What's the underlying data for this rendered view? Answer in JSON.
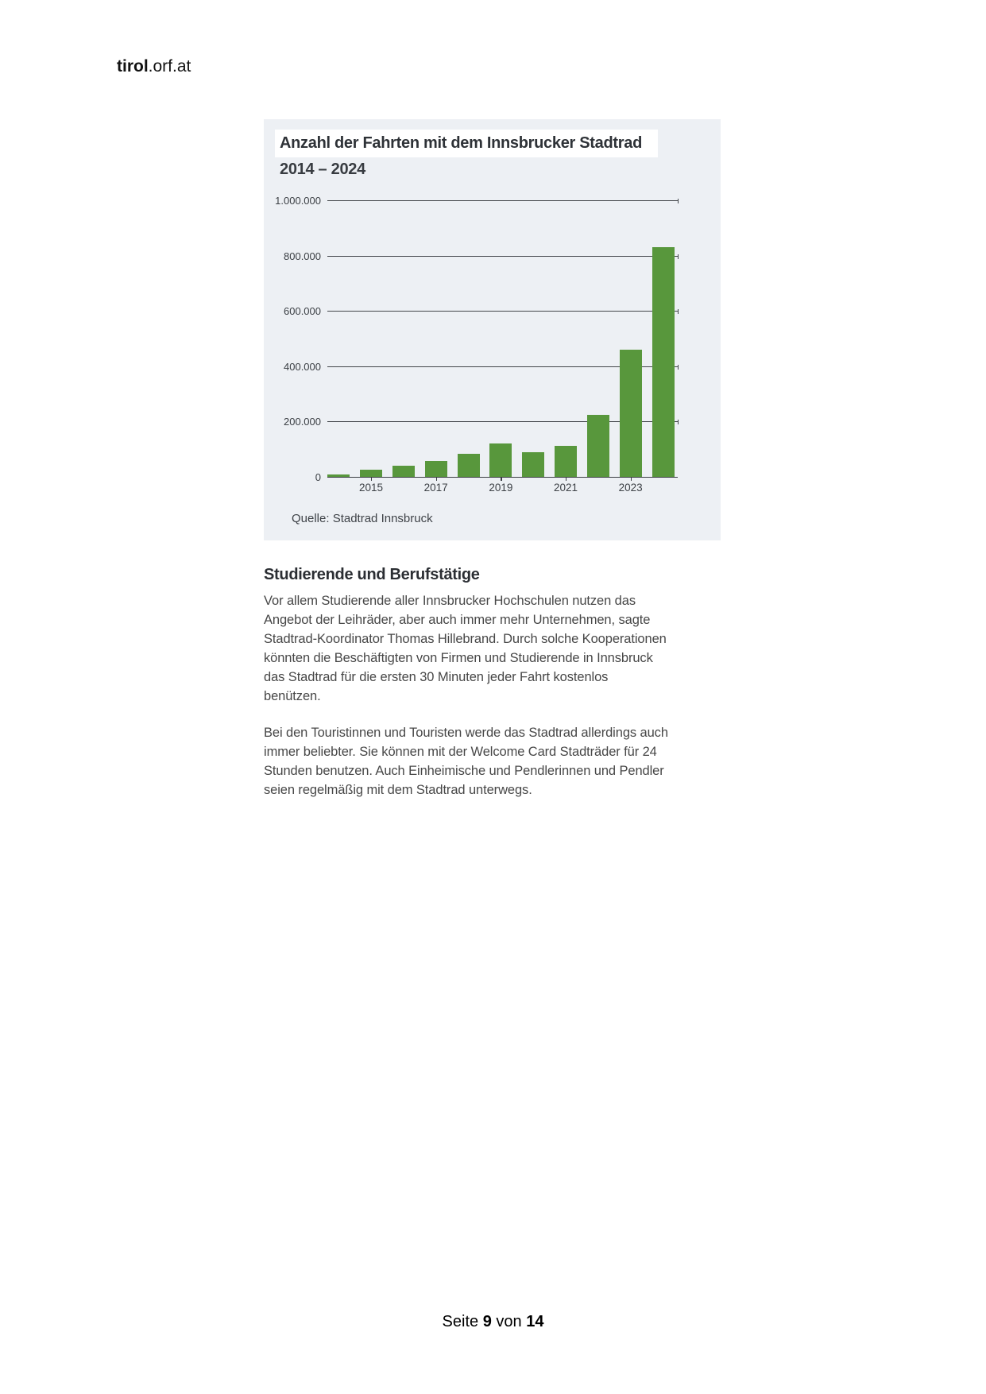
{
  "brand": {
    "bold": "tirol",
    "rest": ".orf.at"
  },
  "chart_data": {
    "type": "bar",
    "title": "Anzahl der Fahrten mit dem Innsbrucker Stadtrad",
    "subtitle": "2014 – 2024",
    "source": "Quelle: Stadtrad Innsbruck",
    "categories": [
      "2014",
      "2015",
      "2016",
      "2017",
      "2018",
      "2019",
      "2020",
      "2021",
      "2022",
      "2023",
      "2024"
    ],
    "values": [
      10000,
      25000,
      40000,
      58000,
      84000,
      120000,
      90000,
      113000,
      225000,
      460000,
      830000
    ],
    "x_tick_labels": [
      "2015",
      "2017",
      "2019",
      "2021",
      "2023"
    ],
    "x_tick_indices": [
      1,
      3,
      5,
      7,
      9
    ],
    "y_ticks": [
      {
        "value": 0,
        "label": "0"
      },
      {
        "value": 200000,
        "label": "200.000"
      },
      {
        "value": 400000,
        "label": "400.000"
      },
      {
        "value": 600000,
        "label": "600.000"
      },
      {
        "value": 800000,
        "label": "800.000"
      },
      {
        "value": 1000000,
        "label": "1.000.000"
      }
    ],
    "ylim": [
      0,
      1000000
    ],
    "grid": true,
    "legend": "none",
    "bar_color": "#58973c",
    "panel_bg": "#edf0f4"
  },
  "article": {
    "heading": "Studierende und Berufstätige",
    "paragraphs": [
      "Vor allem Studierende aller Innsbrucker Hochschulen nutzen das\nAngebot der Leihräder, aber auch immer mehr Unternehmen, sagte\nStadtrad-Koordinator Thomas Hillebrand. Durch solche Kooperationen\nkönnten die Beschäftigten von Firmen und Studierende in Innsbruck\ndas Stadtrad für die ersten 30 Minuten jeder Fahrt kostenlos\nbenützen.",
      "Bei den Touristinnen und Touristen werde das Stadtrad allerdings auch\nimmer beliebter. Sie können mit der Welcome Card Stadträder für 24\nStunden benutzen. Auch Einheimische und Pendlerinnen und Pendler\nseien regelmäßig mit dem Stadtrad unterwegs."
    ]
  },
  "footer": {
    "label_page": "Seite",
    "page_number": "9",
    "label_of": "von",
    "total_pages": "14"
  }
}
